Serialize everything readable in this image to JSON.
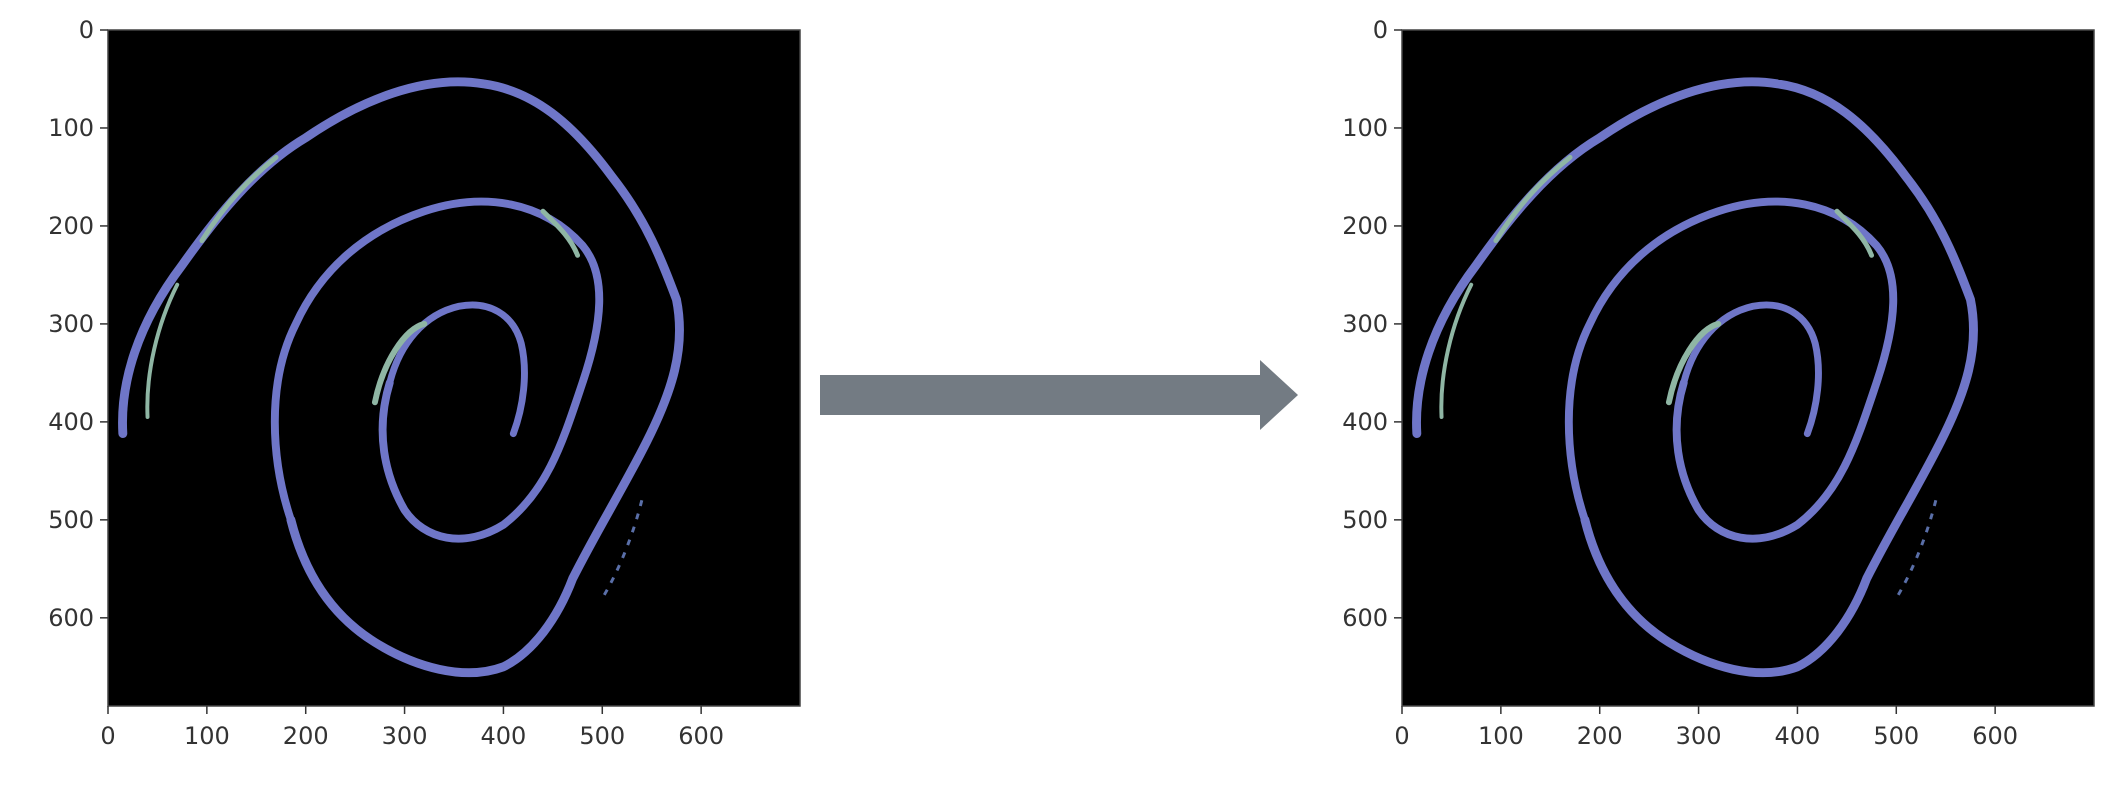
{
  "chart_data": [
    {
      "type": "image",
      "title": "",
      "xlabel": "",
      "ylabel": "",
      "xlim": [
        0,
        700
      ],
      "ylim": [
        690,
        0
      ],
      "xticks": [
        0,
        100,
        200,
        300,
        400,
        500,
        600
      ],
      "yticks": [
        0,
        100,
        200,
        300,
        400,
        500,
        600
      ],
      "grid": false,
      "image": "dark spiral on black background"
    },
    {
      "type": "image",
      "title": "",
      "xlabel": "",
      "ylabel": "",
      "xlim": [
        0,
        700
      ],
      "ylim": [
        690,
        0
      ],
      "xticks": [
        0,
        100,
        200,
        300,
        400,
        500,
        600
      ],
      "yticks": [
        0,
        100,
        200,
        300,
        400,
        500,
        600
      ],
      "grid": false,
      "image": "dark spiral on black background"
    }
  ],
  "colors": {
    "plot_background": "#000000",
    "spiral_stroke": "#6f76c8",
    "spiral_highlight": "#8fb6a4",
    "arrow": "#737b83"
  }
}
